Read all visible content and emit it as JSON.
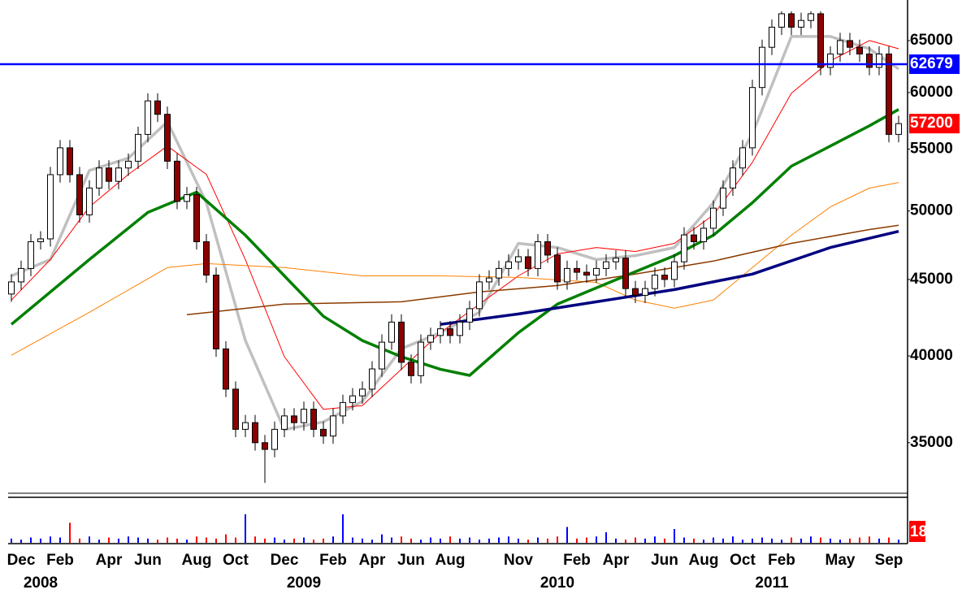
{
  "chart_data": {
    "type": "candlestick",
    "log_scale": true,
    "ylim": [
      32420,
      69190
    ],
    "yticks": [
      35000,
      40000,
      45000,
      50000,
      55000,
      60000,
      65000
    ],
    "up_color": "#ffffff",
    "down_color": "#8b0000",
    "categories": [
      null,
      "Dec",
      null,
      null,
      null,
      "Feb",
      null,
      null,
      null,
      null,
      "Apr",
      null,
      null,
      null,
      "Jun",
      null,
      null,
      null,
      null,
      "Aug",
      null,
      null,
      null,
      "Oct",
      null,
      null,
      null,
      null,
      "Dec",
      null,
      null,
      null,
      null,
      "Feb",
      null,
      null,
      null,
      "Apr",
      null,
      null,
      null,
      "Jun",
      null,
      null,
      null,
      "Aug",
      null,
      null,
      null,
      null,
      null,
      null,
      "Nov",
      null,
      null,
      null,
      null,
      null,
      "Feb",
      null,
      null,
      null,
      "Apr",
      null,
      null,
      null,
      null,
      "Jun",
      null,
      null,
      null,
      "Aug",
      null,
      null,
      null,
      "Oct",
      null,
      null,
      null,
      "Feb",
      null,
      null,
      null,
      null,
      null,
      "May",
      null,
      null,
      null,
      null,
      "Sep",
      null
    ],
    "years": [
      null,
      null,
      null,
      "2008",
      null,
      null,
      null,
      null,
      null,
      null,
      null,
      null,
      null,
      null,
      null,
      null,
      null,
      null,
      null,
      null,
      null,
      null,
      null,
      null,
      null,
      null,
      null,
      null,
      null,
      null,
      "2009",
      null,
      null,
      null,
      null,
      null,
      null,
      null,
      null,
      null,
      null,
      null,
      null,
      null,
      null,
      null,
      null,
      null,
      null,
      null,
      null,
      null,
      null,
      null,
      null,
      null,
      "2010",
      null,
      null,
      null,
      null,
      null,
      null,
      null,
      null,
      null,
      null,
      null,
      null,
      null,
      null,
      null,
      null,
      null,
      null,
      null,
      null,
      null,
      "2011",
      null,
      null,
      null,
      null,
      null,
      null,
      null,
      null,
      null,
      null,
      null,
      null,
      null
    ],
    "open": [
      44000,
      44830,
      45766,
      47690,
      47900,
      52877,
      55108,
      52877,
      49705,
      51800,
      53424,
      52336,
      53424,
      53984,
      56258,
      59235,
      58025,
      53984,
      50745,
      51270,
      47690,
      45300,
      40437,
      38007,
      35727,
      36097,
      35000,
      34640,
      35727,
      36472,
      36097,
      36850,
      35727,
      35360,
      36472,
      37232,
      37617,
      38007,
      39208,
      40857,
      42140,
      39610,
      38806,
      40857,
      41280,
      41706,
      41280,
      42140,
      43020,
      44830,
      45100,
      45766,
      46240,
      46600,
      45766,
      47690,
      46720,
      44830,
      45766,
      45500,
      45300,
      45766,
      46240,
      46500,
      44370,
      43915,
      44370,
      45300,
      45000,
      46240,
      48190,
      47690,
      48690,
      50220,
      51800,
      53424,
      55108,
      60470,
      64333,
      66355,
      67740,
      66355,
      67044,
      67740,
      62372,
      63672,
      65000,
      64333,
      63672,
      62372,
      63672,
      56258
    ],
    "high": [
      45370,
      46320,
      48260,
      48470,
      53510,
      55770,
      55770,
      53510,
      52420,
      54060,
      54060,
      54060,
      54630,
      56930,
      59940,
      59940,
      58720,
      54630,
      51890,
      51890,
      48260,
      45840,
      40920,
      38460,
      36530,
      36530,
      35420,
      36160,
      36910,
      36910,
      37290,
      37290,
      36160,
      36910,
      37680,
      38070,
      38460,
      39680,
      41350,
      42650,
      42650,
      40090,
      41350,
      41780,
      42210,
      42210,
      42650,
      43540,
      45370,
      45640,
      46320,
      46790,
      47160,
      47160,
      48260,
      48260,
      47280,
      46320,
      46320,
      46050,
      46320,
      46790,
      47060,
      47060,
      44900,
      44900,
      45840,
      45840,
      46790,
      48770,
      48770,
      49270,
      50820,
      52420,
      54060,
      55770,
      61200,
      65100,
      67150,
      68000,
      68000,
      67850,
      68000,
      68000,
      64430,
      65780,
      65780,
      65100,
      64430,
      64430,
      64430,
      57890
    ],
    "low": [
      43470,
      44290,
      45220,
      47120,
      47330,
      52240,
      52240,
      49110,
      49110,
      51180,
      51710,
      51710,
      52780,
      53340,
      55580,
      57330,
      53340,
      50140,
      50140,
      47120,
      44760,
      39950,
      37550,
      35300,
      35300,
      34580,
      32900,
      34220,
      35300,
      35660,
      35660,
      35300,
      34940,
      34940,
      36030,
      36780,
      37160,
      37550,
      38740,
      40370,
      39130,
      38340,
      38340,
      40370,
      40780,
      40780,
      40780,
      41630,
      42500,
      44290,
      44560,
      45220,
      45680,
      45220,
      45220,
      46160,
      44290,
      44290,
      44950,
      44760,
      44760,
      45220,
      45680,
      43840,
      43390,
      43390,
      43840,
      44460,
      44460,
      45680,
      47120,
      47120,
      48100,
      49620,
      51180,
      52780,
      54450,
      59740,
      63560,
      65560,
      65560,
      65560,
      66240,
      61620,
      61620,
      62910,
      63560,
      62910,
      61620,
      61620,
      55580,
      55580
    ],
    "close": [
      44830,
      45766,
      47690,
      47900,
      52877,
      55108,
      52877,
      49705,
      51800,
      53424,
      52336,
      53424,
      53984,
      56258,
      59235,
      58025,
      53984,
      50745,
      51270,
      47690,
      45300,
      40437,
      38007,
      35727,
      36097,
      35000,
      34640,
      35727,
      36472,
      36097,
      36850,
      35727,
      35360,
      36472,
      37232,
      37617,
      38007,
      39208,
      40857,
      42140,
      39610,
      38806,
      40857,
      41280,
      41706,
      41280,
      42140,
      43020,
      44830,
      45100,
      45766,
      46240,
      46600,
      45766,
      47690,
      46720,
      44830,
      45766,
      45500,
      45300,
      45766,
      46240,
      46500,
      44370,
      43915,
      44370,
      45300,
      45000,
      46240,
      48190,
      47690,
      48690,
      50220,
      51800,
      53424,
      55108,
      60470,
      64333,
      66355,
      67740,
      66355,
      67044,
      67740,
      62372,
      63672,
      65000,
      64333,
      63672,
      62372,
      63672,
      56258,
      57200
    ],
    "series": [
      {
        "color": "#c0c0c0",
        "width": 3.5,
        "x": [
          0,
          4,
          8,
          12,
          16,
          20,
          24,
          28,
          32,
          36,
          40,
          44,
          48,
          52,
          56,
          60,
          64,
          68,
          72,
          76,
          80,
          84,
          88,
          91
        ],
        "values": [
          45250,
          46400,
          53220,
          54240,
          57370,
          50640,
          40960,
          35710,
          36140,
          37300,
          40450,
          41460,
          42780,
          47570,
          47270,
          46400,
          46680,
          47270,
          50640,
          56300,
          65410,
          65410,
          64190,
          62220
        ]
      },
      {
        "color": "#ff0000",
        "width": 1,
        "x": [
          0,
          4,
          8,
          12,
          16,
          20,
          24,
          28,
          32,
          36,
          40,
          44,
          48,
          52,
          56,
          60,
          64,
          68,
          72,
          76,
          80,
          84,
          88,
          91
        ],
        "values": [
          43590,
          46400,
          50320,
          52900,
          55260,
          52900,
          46400,
          39950,
          36840,
          37060,
          39190,
          41460,
          43320,
          45250,
          46800,
          47270,
          46980,
          47570,
          49700,
          53890,
          59940,
          63000,
          65000,
          64190
        ]
      },
      {
        "color": "#ff8000",
        "width": 1,
        "x": [
          0,
          8,
          16,
          20,
          28,
          36,
          44,
          52,
          60,
          64,
          68,
          72,
          76,
          80,
          84,
          88,
          91
        ],
        "values": [
          40040,
          42780,
          45830,
          46110,
          45830,
          45250,
          45250,
          45140,
          44800,
          43590,
          43050,
          43590,
          45830,
          48170,
          50320,
          51790,
          52240
        ]
      },
      {
        "color": "#8b3a00",
        "width": 1.5,
        "x": [
          18,
          28,
          40,
          48,
          56,
          64,
          72,
          80,
          88,
          91
        ],
        "values": [
          42620,
          43320,
          43480,
          44140,
          44580,
          45370,
          46290,
          47570,
          48590,
          48910
        ]
      },
      {
        "color": "#008000",
        "width": 3.5,
        "x": [
          0,
          8,
          14,
          19,
          24,
          28,
          32,
          36,
          40,
          44,
          47,
          52,
          56,
          60,
          64,
          68,
          72,
          76,
          80,
          84,
          88,
          91
        ],
        "values": [
          41990,
          46400,
          49890,
          51470,
          48170,
          45250,
          42520,
          40960,
          39950,
          39190,
          38820,
          41460,
          43320,
          44420,
          45540,
          46680,
          48170,
          50640,
          53570,
          55260,
          57010,
          58460
        ]
      },
      {
        "color": "#000080",
        "width": 3.5,
        "x": [
          44,
          52,
          60,
          68,
          76,
          84,
          91
        ],
        "values": [
          41990,
          42670,
          43480,
          44300,
          45370,
          47270,
          48460
        ]
      }
    ],
    "hline": {
      "value": 62679,
      "color": "#0000ff"
    },
    "last_price": {
      "value": 57200,
      "color": "#ff0000"
    },
    "volume": {
      "ylim": [
        0,
        40
      ],
      "up_color": "#0000ff",
      "down_color": "#ff0000",
      "tag": 18,
      "tag_color": "#ff0000",
      "values": [
        4,
        3,
        5,
        4,
        6,
        5,
        19,
        4,
        6,
        3,
        5,
        4,
        6,
        5,
        4,
        3,
        5,
        4,
        3,
        6,
        5,
        4,
        8,
        5,
        27,
        6,
        4,
        5,
        3,
        4,
        5,
        3,
        4,
        6,
        27,
        5,
        4,
        3,
        8,
        5,
        6,
        4,
        3,
        5,
        4,
        6,
        4,
        5,
        3,
        4,
        5,
        6,
        4,
        3,
        5,
        4,
        6,
        15,
        4,
        5,
        6,
        10,
        4,
        3,
        5,
        4,
        6,
        4,
        13,
        5,
        4,
        3,
        5,
        4,
        6,
        3,
        4,
        5,
        4,
        3,
        5,
        4,
        6,
        5,
        4,
        3,
        4,
        5,
        6,
        4,
        5,
        3
      ]
    }
  }
}
